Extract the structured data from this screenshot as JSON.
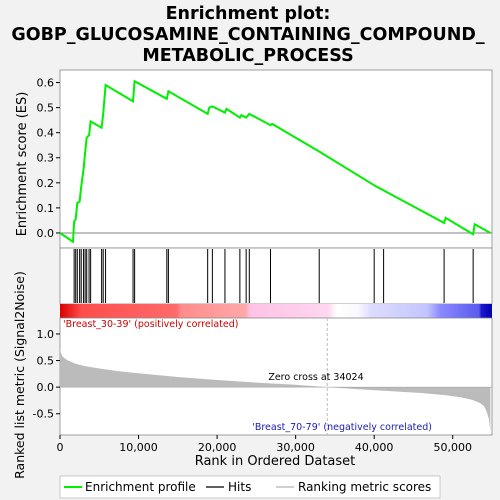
{
  "title_lines": [
    "Enrichment plot:",
    "GOBP_GLUCOSAMINE_CONTAINING_COMPOUND_",
    "METABOLIC_PROCESS"
  ],
  "top_panel": {
    "ylabel": "Enrichment score (ES)",
    "yticks": [
      "0.0",
      "0.1",
      "0.2",
      "0.3",
      "0.4",
      "0.5",
      "0.6"
    ]
  },
  "bottom_panel": {
    "ylabel": "Ranked list metric (Signal2Noise)",
    "xlabel": "Rank in Ordered Dataset",
    "yticks": [
      "-0.5",
      "0.0",
      "0.5",
      "1.0"
    ],
    "xticks": [
      "0",
      "10,000",
      "20,000",
      "30,000",
      "40,000",
      "50,000"
    ],
    "pos_label": "'Breast_30-39' (positively correlated)",
    "neg_label": "'Breast_70-79' (negatively correlated)",
    "zero_cross": "Zero cross at 34024"
  },
  "legend": {
    "items": [
      "Enrichment profile",
      "Hits",
      "Ranking metric scores"
    ]
  },
  "colors": {
    "profile": "#00ee00",
    "positive": "#ff0000",
    "negative": "#0000ff",
    "neutral": "#ffffff",
    "metric": "#bbbbbb"
  },
  "chart_data": {
    "type": "line",
    "x_range": [
      0,
      55000
    ],
    "enrichment_ylim": [
      -0.06,
      0.65
    ],
    "metric_ylim": [
      -0.9,
      1.3
    ],
    "zero_cross": 34024,
    "enrichment_profile": {
      "x": [
        0,
        1650,
        1800,
        2000,
        2200,
        2500,
        2700,
        3000,
        3200,
        3400,
        3700,
        3900,
        5300,
        5500,
        5800,
        9300,
        9500,
        13600,
        13800,
        18800,
        19000,
        19400,
        21000,
        21200,
        22900,
        23100,
        23700,
        24100,
        26800,
        27000,
        33000,
        40000,
        40300,
        48900,
        49100,
        52600,
        52800,
        54800
      ],
      "y": [
        0.0,
        -0.035,
        0.045,
        0.055,
        0.12,
        0.125,
        0.185,
        0.255,
        0.32,
        0.38,
        0.39,
        0.445,
        0.42,
        0.475,
        0.59,
        0.525,
        0.605,
        0.535,
        0.565,
        0.475,
        0.5,
        0.505,
        0.48,
        0.495,
        0.46,
        0.47,
        0.46,
        0.475,
        0.43,
        0.435,
        0.325,
        0.19,
        0.185,
        0.04,
        0.06,
        -0.005,
        0.035,
        0.0
      ]
    },
    "hits": [
      1800,
      2000,
      2200,
      2500,
      2700,
      3000,
      3200,
      3400,
      3700,
      3900,
      5300,
      5500,
      5800,
      9300,
      9500,
      13600,
      13800,
      18800,
      19400,
      21000,
      22900,
      23700,
      24100,
      26800,
      33000,
      40000,
      41200,
      48900,
      52600
    ],
    "metric_curve": {
      "x": [
        0,
        100,
        300,
        600,
        1000,
        2000,
        3000,
        5000,
        7500,
        10000,
        15000,
        20000,
        25000,
        30000,
        34024,
        38000,
        42000,
        46000,
        49000,
        51000,
        52500,
        53500,
        54000,
        54300,
        54600,
        54800
      ],
      "y": [
        0.75,
        0.65,
        0.58,
        0.54,
        0.5,
        0.44,
        0.4,
        0.35,
        0.3,
        0.26,
        0.19,
        0.135,
        0.085,
        0.045,
        0.0,
        -0.04,
        -0.075,
        -0.11,
        -0.15,
        -0.19,
        -0.24,
        -0.3,
        -0.36,
        -0.45,
        -0.6,
        -0.82
      ]
    }
  }
}
